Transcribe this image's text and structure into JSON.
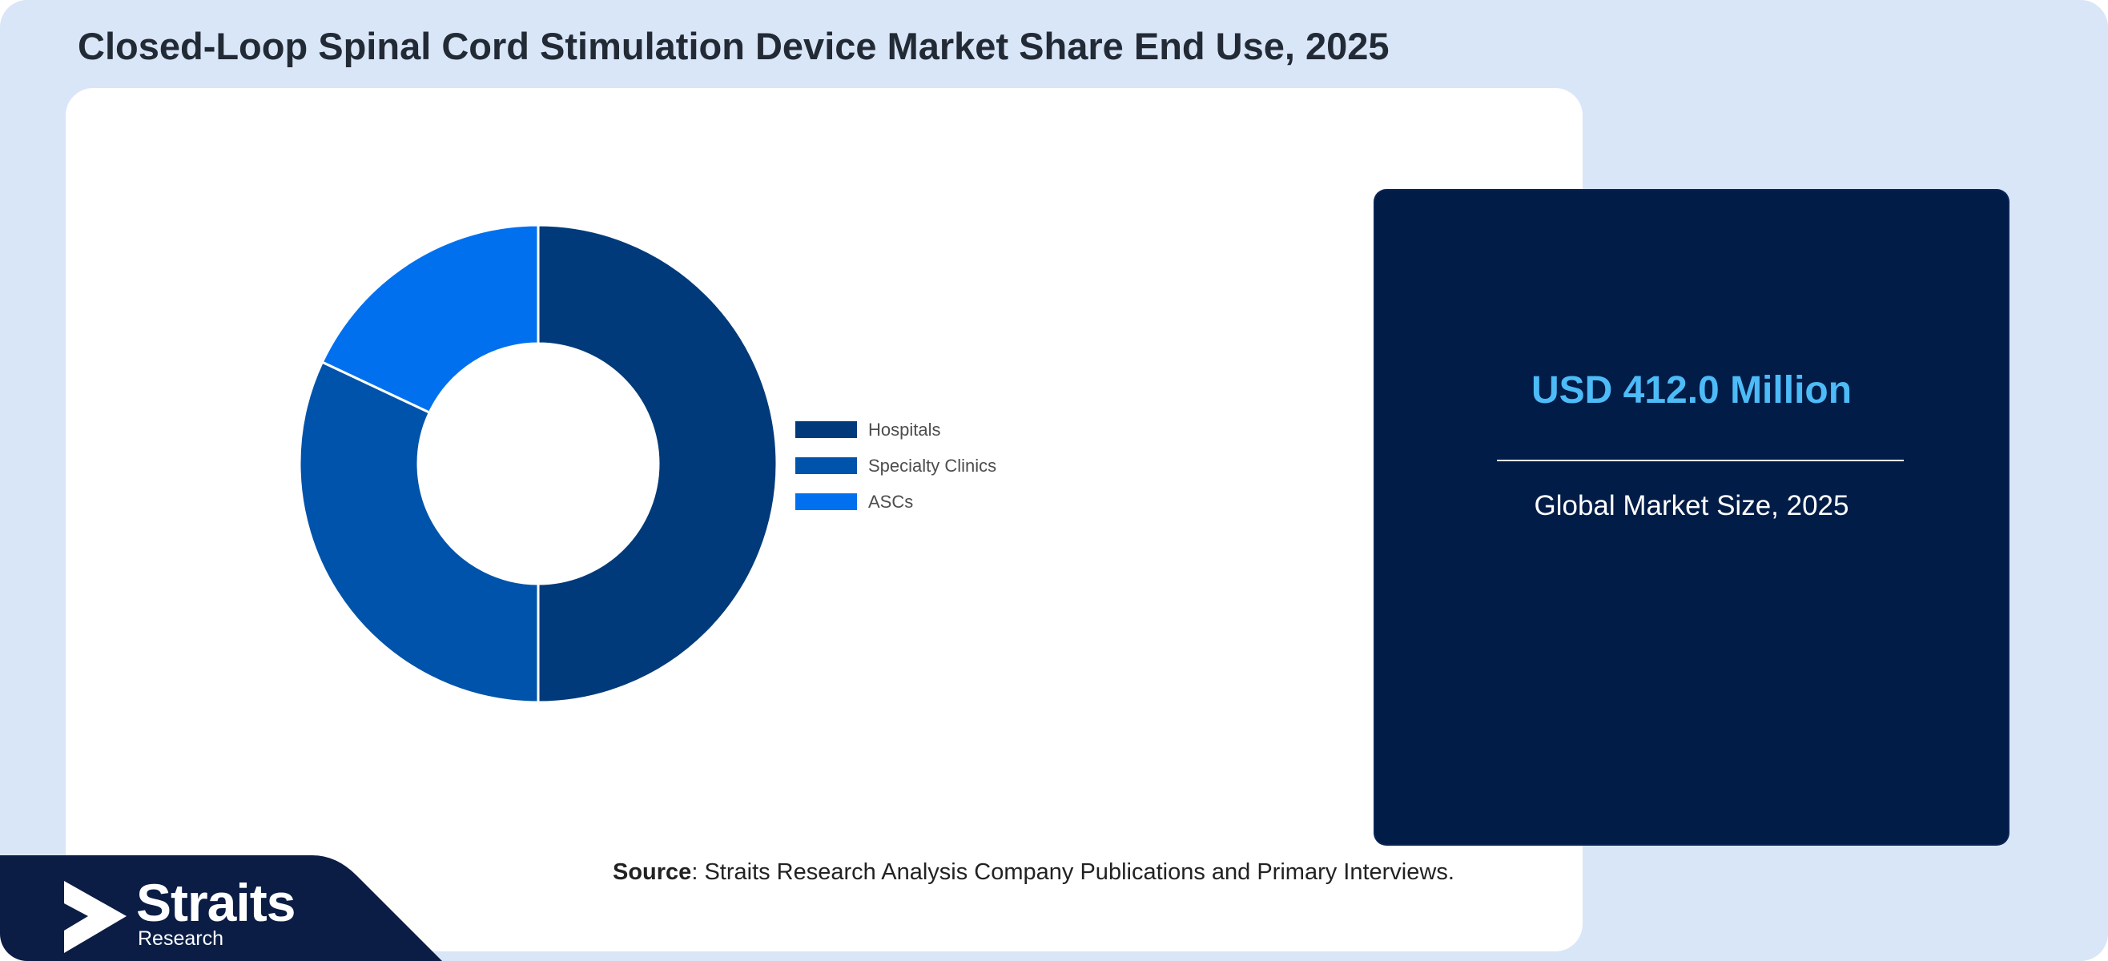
{
  "title": "Closed-Loop Spinal Cord Stimulation Device Market Share End Use, 2025",
  "chart_data": {
    "type": "pie",
    "donut": true,
    "title": "",
    "categories": [
      "Hospitals",
      "Specialty Clinics",
      "ASCs"
    ],
    "values": [
      50,
      32,
      18
    ],
    "unit": "%",
    "colors": [
      "#013a7a",
      "#0053ab",
      "#0070ee"
    ],
    "legend_position": "right"
  },
  "info_card": {
    "value": "USD 412.0 Million",
    "caption": "Global Market Size, 2025"
  },
  "source": {
    "label": "Source",
    "text": ": Straits Research Analysis Company Publications and Primary Interviews."
  },
  "logo": {
    "name": "Straits",
    "subtitle": "Research"
  },
  "colors": {
    "background": "#d9e6f8",
    "card": "#011c46",
    "accent": "#4dbbf7",
    "logo_band": "#0b1d45"
  }
}
